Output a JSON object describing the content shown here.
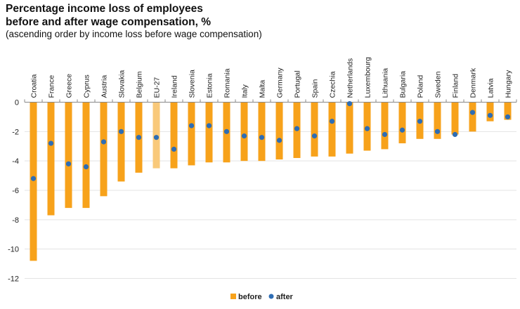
{
  "chart_data": {
    "type": "bar",
    "title": "Percentage income loss of employees before and after wage compensation, %",
    "title_lines": [
      "Percentage income loss of employees",
      "before and after wage compensation, %"
    ],
    "subtitle": "(ascending order by income loss before wage compensation)",
    "xlabel": "",
    "ylabel": "",
    "ylim": [
      -12,
      0
    ],
    "yticks": [
      0,
      -2,
      -4,
      -6,
      -8,
      -10,
      -12
    ],
    "grid": true,
    "legend_position": "bottom",
    "categories": [
      "Croatia",
      "France",
      "Greece",
      "Cyprus",
      "Austria",
      "Slovakia",
      "Belgium",
      "EU-27",
      "Ireland",
      "Slovenia",
      "Estonia",
      "Romania",
      "Italy",
      "Malta",
      "Germany",
      "Portugal",
      "Spain",
      "Czechia",
      "Netherlands",
      "Luxembourg",
      "Lithuania",
      "Bulgaria",
      "Poland",
      "Sweden",
      "Finland",
      "Denmark",
      "Latvia",
      "Hungary"
    ],
    "highlight_category": "EU-27",
    "series": [
      {
        "name": "before",
        "kind": "bar",
        "color": "#F7A21B",
        "highlight_color": "#F9C97A",
        "values": [
          -10.8,
          -7.7,
          -7.2,
          -7.2,
          -6.4,
          -5.4,
          -4.8,
          -4.5,
          -4.5,
          -4.3,
          -4.1,
          -4.1,
          -4.0,
          -4.0,
          -3.9,
          -3.8,
          -3.7,
          -3.7,
          -3.5,
          -3.3,
          -3.2,
          -2.8,
          -2.5,
          -2.5,
          -2.2,
          -2.0,
          -1.3,
          -1.2
        ]
      },
      {
        "name": "after",
        "kind": "dot",
        "color": "#2E6DB4",
        "values": [
          -5.2,
          -2.8,
          -4.2,
          -4.4,
          -2.7,
          -2.0,
          -2.4,
          -2.4,
          -3.2,
          -1.6,
          -1.6,
          -2.0,
          -2.3,
          -2.4,
          -2.6,
          -1.8,
          -2.3,
          -1.3,
          -0.1,
          -1.8,
          -2.2,
          -1.9,
          -1.3,
          -2.0,
          -2.2,
          -0.7,
          -0.9,
          -1.0
        ]
      }
    ]
  }
}
